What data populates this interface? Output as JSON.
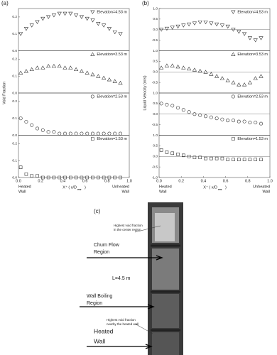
{
  "chart_data": [
    {
      "type": "scatter",
      "panel": "(a)",
      "y_label": "Void Fraction",
      "x_label": [
        "X⁺ ( x/D",
        "ew",
        ")"
      ],
      "x_end_labels": [
        [
          "Heated",
          "Wall"
        ],
        [
          "Unheated",
          "Wall"
        ]
      ],
      "xlim": [
        0,
        1
      ],
      "xticks": [
        {
          "value": 0,
          "label": "0.0"
        },
        0.2,
        0.4,
        0.6,
        0.8,
        {
          "value": 1,
          "label": "1.0"
        }
      ],
      "x": [
        0.02,
        0.07,
        0.12,
        0.17,
        0.22,
        0.27,
        0.32,
        0.37,
        0.42,
        0.47,
        0.52,
        0.57,
        0.62,
        0.67,
        0.72,
        0.77,
        0.82,
        0.87,
        0.92
      ],
      "series": [
        {
          "name": "Elevation=4.53 m",
          "marker": "triangle-down",
          "color": "#333333",
          "ylim": [
            0,
            0.25
          ],
          "yticks": [
            {
              "value": 0,
              "label": "0.0"
            },
            0.1,
            0.2
          ],
          "values": [
            0.1,
            0.13,
            0.15,
            0.17,
            0.19,
            0.2,
            0.21,
            0.22,
            0.22,
            0.22,
            0.21,
            0.2,
            0.19,
            0.18,
            0.16,
            0.15,
            0.13,
            0.11,
            0.1
          ]
        },
        {
          "name": "Elevation=3.53 m",
          "marker": "triangle-up",
          "color": "#333333",
          "ylim": [
            0,
            0.25
          ],
          "yticks": [
            {
              "value": 0,
              "label": "0.0"
            },
            0.1,
            0.2
          ],
          "values": [
            0.12,
            0.13,
            0.14,
            0.15,
            0.15,
            0.16,
            0.16,
            0.16,
            0.15,
            0.15,
            0.14,
            0.13,
            0.12,
            0.11,
            0.1,
            0.09,
            0.08,
            0.07,
            0.06
          ]
        },
        {
          "name": "Elevation=2.53 m",
          "marker": "circle",
          "color": "#333333",
          "ylim": [
            0,
            0.25
          ],
          "yticks": [
            {
              "value": 0,
              "label": "0.0"
            },
            0.1,
            0.2
          ],
          "values": [
            0.1,
            0.08,
            0.06,
            0.04,
            0.03,
            0.02,
            0.02,
            0.01,
            0.01,
            0.01,
            0.01,
            0.01,
            0.01,
            0.01,
            0.01,
            0.01,
            0.01,
            0.01,
            0.01
          ]
        },
        {
          "name": "Elevation=1.53 m",
          "marker": "square",
          "color": "#333333",
          "ylim": [
            0,
            0.25
          ],
          "yticks": [
            {
              "value": 0,
              "label": "0.0"
            },
            0.1,
            0.2
          ],
          "values": [
            0.06,
            0.02,
            0.01,
            0.01,
            0,
            0,
            0,
            0,
            0,
            0,
            0,
            0,
            0,
            0,
            0,
            0,
            0,
            0,
            0
          ]
        }
      ]
    },
    {
      "type": "scatter",
      "panel": "(b)",
      "y_label": "Liquid Velocity (m/s)",
      "x_label": [
        "X⁺ ( x/D",
        "ew",
        ")"
      ],
      "x_end_labels": [
        [
          "Heated",
          "Wall"
        ],
        [
          "Unheated",
          "Wall"
        ]
      ],
      "xlim": [
        0,
        1
      ],
      "xticks": [
        {
          "value": 0,
          "label": "0.0"
        },
        0.2,
        0.4,
        0.6,
        0.8,
        {
          "value": 1,
          "label": "1.0"
        }
      ],
      "x": [
        0.02,
        0.07,
        0.12,
        0.17,
        0.22,
        0.27,
        0.32,
        0.37,
        0.42,
        0.47,
        0.52,
        0.57,
        0.62,
        0.67,
        0.72,
        0.77,
        0.82,
        0.87,
        0.92
      ],
      "series": [
        {
          "name": "Elevation=4.53 m",
          "marker": "triangle-down",
          "color": "#333333",
          "ylim": [
            -1,
            1
          ],
          "yticks": [
            -0.5,
            {
              "value": 0,
              "label": "0.0"
            },
            0.5,
            {
              "value": 1,
              "label": "1.0"
            }
          ],
          "values": [
            0.0,
            0.05,
            0.1,
            0.15,
            0.2,
            0.25,
            0.3,
            0.35,
            0.35,
            0.3,
            0.25,
            0.2,
            0.15,
            0.0,
            -0.1,
            -0.2,
            -0.4,
            -0.5,
            -0.4
          ]
        },
        {
          "name": "Elevation=3.53 m",
          "marker": "triangle-up",
          "color": "#333333",
          "ylim": [
            -1,
            1
          ],
          "yticks": [
            -0.5,
            {
              "value": 0,
              "label": "0.0"
            },
            0.5,
            {
              "value": 1,
              "label": "1.0"
            }
          ],
          "values": [
            0.2,
            0.3,
            0.3,
            0.25,
            0.2,
            0.15,
            0.1,
            0.05,
            0.0,
            -0.1,
            -0.2,
            -0.3,
            -0.4,
            -0.5,
            -0.6,
            -0.6,
            -0.5,
            -0.3,
            -0.2
          ]
        },
        {
          "name": "Elevation=2.53 m",
          "marker": "circle",
          "color": "#333333",
          "ylim": [
            -1,
            1
          ],
          "yticks": [
            -0.5,
            {
              "value": 0,
              "label": "0.0"
            },
            0.5,
            {
              "value": 1,
              "label": "1.0"
            }
          ],
          "values": [
            0.5,
            0.45,
            0.4,
            0.3,
            0.2,
            0.1,
            0.0,
            -0.05,
            -0.1,
            -0.15,
            -0.2,
            -0.25,
            -0.3,
            -0.3,
            -0.35,
            -0.35,
            -0.4,
            -0.4,
            -0.45
          ]
        },
        {
          "name": "Elevation=1.53 m",
          "marker": "square",
          "color": "#333333",
          "ylim": [
            -1,
            1
          ],
          "yticks": [
            {
              "value": -1,
              "label": "-1.0"
            },
            -0.5,
            {
              "value": 0,
              "label": "0.0"
            },
            0.5,
            {
              "value": 1,
              "label": "1.0"
            }
          ],
          "values": [
            0.3,
            0.2,
            0.15,
            0.1,
            0.05,
            0.0,
            -0.05,
            -0.05,
            -0.1,
            -0.1,
            -0.1,
            -0.1,
            -0.15,
            -0.15,
            -0.15,
            -0.15,
            -0.15,
            -0.15,
            -0.15
          ]
        }
      ]
    }
  ],
  "photo": {
    "panel": "(c)",
    "notes": [
      [
        "Highest void fraction",
        "in the center region"
      ],
      [
        "Churn Flow",
        "Region"
      ],
      [
        "L=4.5 m"
      ],
      [
        "Wall Boiling",
        "Region"
      ],
      [
        "Highest void fraction",
        "nearby the heated wall"
      ],
      [
        "Heated",
        "Wall"
      ]
    ]
  }
}
